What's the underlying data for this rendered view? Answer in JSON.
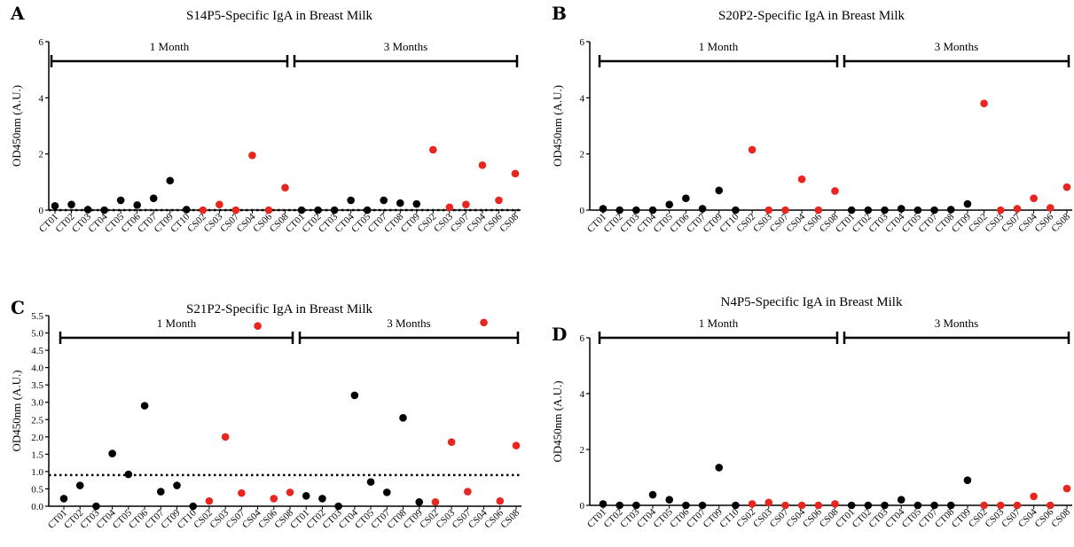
{
  "chart_data": [
    {
      "type": "scatter",
      "panel": "A",
      "title": "S14P5-Specific IgA in Breast Milk",
      "ylabel": "OD450nm (A.U.)",
      "ylim": [
        0,
        6
      ],
      "yticks": [
        "0",
        "2",
        "4",
        "6"
      ],
      "periods": [
        "1 Month",
        "3 Months"
      ],
      "threshold": 0,
      "categories": [
        "CT01",
        "CT02",
        "CT03",
        "CT04",
        "CT05",
        "CT06",
        "CT07",
        "CT09",
        "CT10",
        "CS02",
        "CS03",
        "CS07",
        "CS04",
        "CS06",
        "CS08",
        "CT01",
        "CT02",
        "CT03",
        "CT04",
        "CT05",
        "CT07",
        "CT08",
        "CT09",
        "CS02",
        "CS03",
        "CS07",
        "CS04",
        "CS06",
        "CS08"
      ],
      "values": [
        0.15,
        0.2,
        0.02,
        0.0,
        0.35,
        0.18,
        0.42,
        1.05,
        0.02,
        0.0,
        0.2,
        0.0,
        1.95,
        0.0,
        0.8,
        0.0,
        0.0,
        0.0,
        0.35,
        0.0,
        0.35,
        0.25,
        0.22,
        2.15,
        0.1,
        0.2,
        1.6,
        0.35,
        1.3
      ],
      "colors": [
        "black",
        "black",
        "black",
        "black",
        "black",
        "black",
        "black",
        "black",
        "black",
        "red",
        "red",
        "red",
        "red",
        "red",
        "red",
        "black",
        "black",
        "black",
        "black",
        "black",
        "black",
        "black",
        "black",
        "red",
        "red",
        "red",
        "red",
        "red",
        "red"
      ]
    },
    {
      "type": "scatter",
      "panel": "B",
      "title": "S20P2-Specific IgA in Breast Milk",
      "ylabel": "OD450nm (A.U.)",
      "ylim": [
        0,
        6
      ],
      "yticks": [
        "0",
        "2",
        "4",
        "6"
      ],
      "periods": [
        "1 Month",
        "3 Months"
      ],
      "categories": [
        "CT01",
        "CT02",
        "CT03",
        "CT04",
        "CT05",
        "CT06",
        "CT07",
        "CT09",
        "CT10",
        "CS02",
        "CS03",
        "CS07",
        "CS04",
        "CS06",
        "CS08",
        "CT01",
        "CT02",
        "CT03",
        "CT04",
        "CT05",
        "CT07",
        "CT08",
        "CT09",
        "CS02",
        "CS03",
        "CS07",
        "CS04",
        "CS06",
        "CS08"
      ],
      "values": [
        0.05,
        0.0,
        0.0,
        0.0,
        0.2,
        0.42,
        0.05,
        0.7,
        0.0,
        2.15,
        0.0,
        0.0,
        1.1,
        0.0,
        0.68,
        0.0,
        0.0,
        0.0,
        0.05,
        0.0,
        0.0,
        0.02,
        0.22,
        3.8,
        0.0,
        0.05,
        0.42,
        0.08,
        0.82
      ],
      "colors": [
        "black",
        "black",
        "black",
        "black",
        "black",
        "black",
        "black",
        "black",
        "black",
        "red",
        "red",
        "red",
        "red",
        "red",
        "red",
        "black",
        "black",
        "black",
        "black",
        "black",
        "black",
        "black",
        "black",
        "red",
        "red",
        "red",
        "red",
        "red",
        "red"
      ]
    },
    {
      "type": "scatter",
      "panel": "C",
      "title": "S21P2-Specific IgA in Breast Milk",
      "ylabel": "OD450nm (A.U.)",
      "ylim": [
        0,
        5.5
      ],
      "yticks": [
        "0.0",
        "0.5",
        "1.0",
        "1.5",
        "2.0",
        "2.5",
        "3.0",
        "3.5",
        "4.0",
        "4.5",
        "5.0",
        "5.5"
      ],
      "periods": [
        "1 Month",
        "3 Months"
      ],
      "threshold": 0.9,
      "categories": [
        "CT01",
        "CT02",
        "CT03",
        "CT04",
        "CT05",
        "CT06",
        "CT07",
        "CT09",
        "CT10",
        "CS02",
        "CS03",
        "CS07",
        "CS04",
        "CS06",
        "CS08",
        "CT01",
        "CT02",
        "CT03",
        "CT04",
        "CT05",
        "CT07",
        "CT08",
        "CT09",
        "CS02",
        "CS03",
        "CS07",
        "CS04",
        "CS06",
        "CS08"
      ],
      "values": [
        0.22,
        0.6,
        0.0,
        1.52,
        0.92,
        2.9,
        0.42,
        0.6,
        0.0,
        0.15,
        2.0,
        0.38,
        5.2,
        0.22,
        0.4,
        0.3,
        0.22,
        0.0,
        3.2,
        0.7,
        0.4,
        2.55,
        0.12,
        0.12,
        1.85,
        0.42,
        5.3,
        0.15,
        1.75
      ],
      "colors": [
        "black",
        "black",
        "black",
        "black",
        "black",
        "black",
        "black",
        "black",
        "black",
        "red",
        "red",
        "red",
        "red",
        "red",
        "red",
        "black",
        "black",
        "black",
        "black",
        "black",
        "black",
        "black",
        "black",
        "red",
        "red",
        "red",
        "red",
        "red",
        "red"
      ]
    },
    {
      "type": "scatter",
      "panel": "D",
      "title": "N4P5-Specific IgA in Breast Milk",
      "ylabel": "OD450nm (A.U.)",
      "ylim": [
        0,
        6
      ],
      "yticks": [
        "0",
        "2",
        "4",
        "6"
      ],
      "periods": [
        "1 Month",
        "3 Months"
      ],
      "categories": [
        "CT01",
        "CT02",
        "CT03",
        "CT04",
        "CT05",
        "CT06",
        "CT07",
        "CT09",
        "CT10",
        "CS02",
        "CS03",
        "CS07",
        "CS04",
        "CS06",
        "CS08",
        "CT01",
        "CT02",
        "CT03",
        "CT04",
        "CT05",
        "CT07",
        "CT08",
        "CT09",
        "CS02",
        "CS03",
        "CS07",
        "CS04",
        "CS06",
        "CS08"
      ],
      "values": [
        0.05,
        0.0,
        0.0,
        0.38,
        0.2,
        0.0,
        0.0,
        1.35,
        0.0,
        0.05,
        0.1,
        0.0,
        0.0,
        0.0,
        0.05,
        0.0,
        0.0,
        0.0,
        0.2,
        0.0,
        0.0,
        0.0,
        0.9,
        0.0,
        0.0,
        0.0,
        0.32,
        0.0,
        0.6
      ],
      "colors": [
        "black",
        "black",
        "black",
        "black",
        "black",
        "black",
        "black",
        "black",
        "black",
        "red",
        "red",
        "red",
        "red",
        "red",
        "red",
        "black",
        "black",
        "black",
        "black",
        "black",
        "black",
        "black",
        "black",
        "red",
        "red",
        "red",
        "red",
        "red",
        "red"
      ]
    }
  ]
}
